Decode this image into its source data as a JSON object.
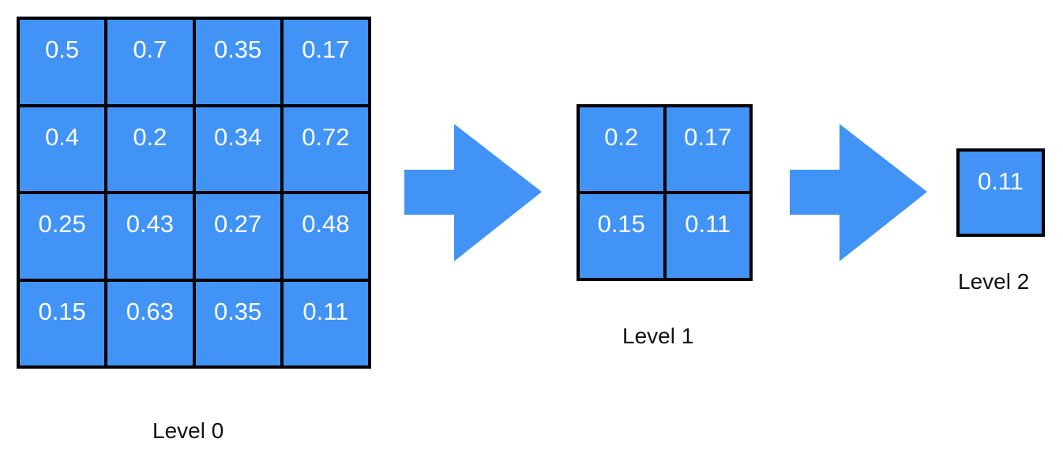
{
  "levels": [
    {
      "label": "Level 0",
      "cells": [
        "0.5",
        "0.7",
        "0.35",
        "0.17",
        "0.4",
        "0.2",
        "0.34",
        "0.72",
        "0.25",
        "0.43",
        "0.27",
        "0.48",
        "0.15",
        "0.63",
        "0.35",
        "0.11"
      ]
    },
    {
      "label": "Level 1",
      "cells": [
        "0.2",
        "0.17",
        "0.15",
        "0.11"
      ]
    },
    {
      "label": "Level 2",
      "cells": [
        "0.11"
      ]
    }
  ],
  "colors": {
    "cell_fill": "#4193f5",
    "arrow_fill": "#4193f5",
    "grid_line": "#000000",
    "cell_text": "#ffffff"
  },
  "icons": [
    "right-arrow-icon",
    "right-arrow-icon"
  ]
}
